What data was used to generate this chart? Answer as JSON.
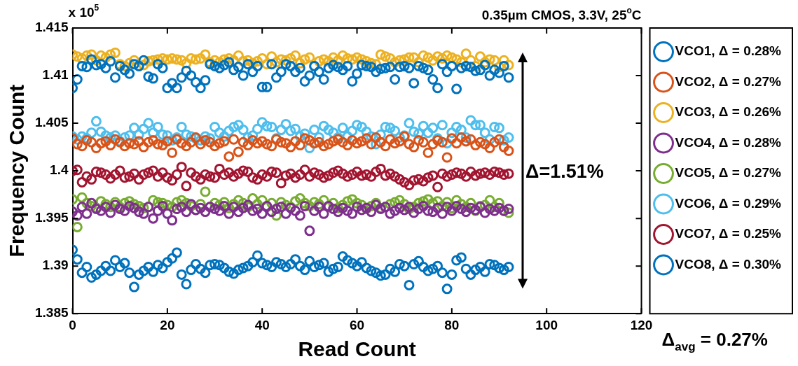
{
  "chart_data": {
    "type": "scatter",
    "title": "0.35µm CMOS, 3.3V, 25$^{o}$C",
    "xlabel": "Read Count",
    "ylabel": "Frequency Count",
    "annotations": [
      "x 10$^{5}$",
      "Δ=1.51%",
      "Δ$_{avg}$ = 0.27%"
    ],
    "x": [
      0,
      1,
      2,
      3,
      4,
      5,
      6,
      7,
      8,
      9,
      10,
      11,
      12,
      13,
      14,
      15,
      16,
      17,
      18,
      19,
      20,
      21,
      22,
      23,
      24,
      25,
      26,
      27,
      28,
      29,
      30,
      31,
      32,
      33,
      34,
      35,
      36,
      37,
      38,
      39,
      40,
      41,
      42,
      43,
      44,
      45,
      46,
      47,
      48,
      49,
      50,
      51,
      52,
      53,
      54,
      55,
      56,
      57,
      58,
      59,
      60,
      61,
      62,
      63,
      64,
      65,
      66,
      67,
      68,
      69,
      70,
      71,
      72,
      73,
      74,
      75,
      76,
      77,
      78,
      79,
      80,
      81,
      82,
      83,
      84,
      85,
      86,
      87,
      88,
      89,
      90,
      91,
      92
    ],
    "series": [
      {
        "name": "VCO1, Δ = 0.28%",
        "color": "#0072bd",
        "values": [
          1.4087,
          1.4096,
          1.411,
          1.4109,
          1.4117,
          1.4111,
          1.4112,
          1.4108,
          1.4115,
          1.4098,
          1.411,
          1.4106,
          1.4102,
          1.4112,
          1.411,
          1.4116,
          1.4099,
          1.4097,
          1.4112,
          1.4108,
          1.4087,
          1.4092,
          1.4087,
          1.4098,
          1.4105,
          1.41,
          1.4093,
          1.4087,
          1.4095,
          1.4112,
          1.411,
          1.4108,
          1.4111,
          1.4114,
          1.4106,
          1.4109,
          1.41,
          1.4112,
          1.4104,
          1.411,
          1.4088,
          1.4088,
          1.4112,
          1.4098,
          1.4104,
          1.4112,
          1.411,
          1.4104,
          1.4108,
          1.4094,
          1.41,
          1.411,
          1.4104,
          1.4096,
          1.4108,
          1.4111,
          1.4109,
          1.4106,
          1.411,
          1.4094,
          1.4102,
          1.4111,
          1.411,
          1.4109,
          1.4104,
          1.4107,
          1.4108,
          1.4109,
          1.4096,
          1.4109,
          1.411,
          1.4108,
          1.4092,
          1.411,
          1.4108,
          1.4106,
          1.4096,
          1.4087,
          1.4112,
          1.4104,
          1.411,
          1.4086,
          1.4108,
          1.411,
          1.4109,
          1.4105,
          1.4106,
          1.4111,
          1.41,
          1.4106,
          1.4103,
          1.411,
          1.4098
        ]
      },
      {
        "name": "VCO2, Δ = 0.27%",
        "color": "#d95319",
        "values": [
          1.4034,
          1.4028,
          1.4026,
          1.4032,
          1.403,
          1.4024,
          1.4029,
          1.4031,
          1.4027,
          1.4033,
          1.403,
          1.4026,
          1.4029,
          1.4028,
          1.4031,
          1.4025,
          1.403,
          1.4032,
          1.4028,
          1.4027,
          1.4031,
          1.4019,
          1.4033,
          1.4029,
          1.4026,
          1.403,
          1.4035,
          1.4028,
          1.4032,
          1.403,
          1.4026,
          1.4029,
          1.4031,
          1.4015,
          1.4033,
          1.402,
          1.403,
          1.4027,
          1.4032,
          1.4029,
          1.4031,
          1.4028,
          1.4026,
          1.4033,
          1.403,
          1.4029,
          1.4025,
          1.4031,
          1.4027,
          1.4034,
          1.4032,
          1.4029,
          1.403,
          1.4026,
          1.4028,
          1.4031,
          1.4033,
          1.403,
          1.4027,
          1.4032,
          1.4029,
          1.4031,
          1.4034,
          1.4028,
          1.4035,
          1.403,
          1.4026,
          1.4033,
          1.4029,
          1.4031,
          1.4036,
          1.4028,
          1.4025,
          1.4032,
          1.403,
          1.4019,
          1.4028,
          1.4032,
          1.403,
          1.4014,
          1.4034,
          1.4029,
          1.4035,
          1.4031,
          1.4033,
          1.4027,
          1.403,
          1.4028,
          1.4024,
          1.403,
          1.4033,
          1.4025,
          1.4021
        ]
      },
      {
        "name": "VCO3, Δ = 0.26%",
        "color": "#edb120",
        "values": [
          1.4122,
          1.412,
          1.4118,
          1.4121,
          1.4122,
          1.4116,
          1.4121,
          1.4119,
          1.4122,
          1.4124,
          1.4112,
          1.411,
          1.4113,
          1.4116,
          1.411,
          1.4111,
          1.4115,
          1.4116,
          1.4117,
          1.4118,
          1.4117,
          1.4118,
          1.4117,
          1.4116,
          1.4113,
          1.4118,
          1.4117,
          1.4118,
          1.4122,
          1.4114,
          1.4116,
          1.4114,
          1.4117,
          1.4118,
          1.4116,
          1.4121,
          1.4115,
          1.4116,
          1.4113,
          1.4115,
          1.4118,
          1.4112,
          1.412,
          1.4114,
          1.4117,
          1.4116,
          1.4118,
          1.4121,
          1.4113,
          1.4117,
          1.4119,
          1.411,
          1.4115,
          1.4117,
          1.4115,
          1.4119,
          1.4116,
          1.4121,
          1.4118,
          1.4117,
          1.4119,
          1.4117,
          1.4115,
          1.4113,
          1.4112,
          1.4122,
          1.412,
          1.4118,
          1.4114,
          1.4116,
          1.4117,
          1.4119,
          1.4119,
          1.4114,
          1.4121,
          1.4119,
          1.4116,
          1.412,
          1.4118,
          1.4121,
          1.4119,
          1.4117,
          1.4114,
          1.4123,
          1.4116,
          1.411,
          1.412,
          1.4114,
          1.4117,
          1.4116,
          1.4109,
          1.4116,
          1.4111
        ]
      },
      {
        "name": "VCO4, Δ = 0.28%",
        "color": "#7e2f8e",
        "values": [
          1.3957,
          1.3953,
          1.3962,
          1.3955,
          1.3966,
          1.396,
          1.3958,
          1.3962,
          1.3956,
          1.3964,
          1.396,
          1.3958,
          1.3963,
          1.3961,
          1.3957,
          1.3955,
          1.3962,
          1.395,
          1.3958,
          1.3963,
          1.3955,
          1.3948,
          1.396,
          1.3962,
          1.3957,
          1.3965,
          1.3959,
          1.3961,
          1.3957,
          1.3962,
          1.396,
          1.3958,
          1.3963,
          1.3955,
          1.3962,
          1.3957,
          1.3961,
          1.3964,
          1.3958,
          1.396,
          1.3955,
          1.3963,
          1.3957,
          1.396,
          1.3962,
          1.3955,
          1.3961,
          1.3958,
          1.3953,
          1.3963,
          1.3937,
          1.3958,
          1.3962,
          1.3955,
          1.3963,
          1.396,
          1.3957,
          1.3961,
          1.3958,
          1.3955,
          1.3962,
          1.3959,
          1.3961,
          1.3957,
          1.3964,
          1.396,
          1.3962,
          1.3955,
          1.3958,
          1.3961,
          1.3959,
          1.3962,
          1.3956,
          1.396,
          1.3963,
          1.3958,
          1.3957,
          1.3961,
          1.3955,
          1.3962,
          1.3958,
          1.3963,
          1.396,
          1.3957,
          1.3961,
          1.3959,
          1.3962,
          1.3956,
          1.396,
          1.3958,
          1.3961,
          1.3958,
          1.396
        ]
      },
      {
        "name": "VCO5, Δ = 0.27%",
        "color": "#77ac30",
        "values": [
          1.397,
          1.3941,
          1.3972,
          1.3966,
          1.3963,
          1.3961,
          1.3968,
          1.3965,
          1.3962,
          1.3967,
          1.3962,
          1.3966,
          1.3968,
          1.3965,
          1.3963,
          1.3961,
          1.3962,
          1.3969,
          1.3967,
          1.3966,
          1.3964,
          1.3962,
          1.3967,
          1.3969,
          1.3966,
          1.3963,
          1.3959,
          1.3965,
          1.3978,
          1.3962,
          1.3966,
          1.3964,
          1.3967,
          1.3961,
          1.3965,
          1.3969,
          1.3966,
          1.3962,
          1.3971,
          1.3965,
          1.3969,
          1.3962,
          1.3966,
          1.3953,
          1.3967,
          1.3964,
          1.3962,
          1.3968,
          1.3971,
          1.3966,
          1.3963,
          1.3967,
          1.3965,
          1.3969,
          1.3962,
          1.3966,
          1.3961,
          1.3964,
          1.3968,
          1.397,
          1.3966,
          1.3964,
          1.396,
          1.3963,
          1.3966,
          1.3961,
          1.3962,
          1.3965,
          1.3967,
          1.3969,
          1.3965,
          1.396,
          1.3962,
          1.3966,
          1.3968,
          1.397,
          1.3966,
          1.3968,
          1.3963,
          1.3967,
          1.3961,
          1.3969,
          1.3965,
          1.3962,
          1.3966,
          1.3958,
          1.3963,
          1.3964,
          1.3969,
          1.3962,
          1.3966,
          1.3958,
          1.3956
        ]
      },
      {
        "name": "VCO6, Δ = 0.29%",
        "color": "#4dbeee",
        "values": [
          1.4036,
          1.4033,
          1.4036,
          1.4034,
          1.404,
          1.4052,
          1.4041,
          1.4037,
          1.4035,
          1.4037,
          1.4031,
          1.4035,
          1.4037,
          1.4045,
          1.4038,
          1.4044,
          1.405,
          1.404,
          1.4046,
          1.4038,
          1.4037,
          1.4032,
          1.4035,
          1.4046,
          1.4038,
          1.4036,
          1.4034,
          1.4032,
          1.4036,
          1.4034,
          1.4046,
          1.404,
          1.4036,
          1.4042,
          1.4046,
          1.4048,
          1.4043,
          1.4035,
          1.4037,
          1.4044,
          1.4051,
          1.4047,
          1.4046,
          1.4034,
          1.4043,
          1.4049,
          1.4042,
          1.4044,
          1.4036,
          1.4039,
          1.4024,
          1.4043,
          1.4035,
          1.4047,
          1.4043,
          1.404,
          1.4035,
          1.4045,
          1.4036,
          1.4042,
          1.4048,
          1.4046,
          1.4041,
          1.4036,
          1.4028,
          1.4038,
          1.4046,
          1.4045,
          1.4042,
          1.4035,
          1.4037,
          1.405,
          1.4041,
          1.4039,
          1.4047,
          1.404,
          1.4045,
          1.4034,
          1.4048,
          1.4029,
          1.404,
          1.4046,
          1.4043,
          1.4035,
          1.4053,
          1.4048,
          1.4048,
          1.404,
          1.4033,
          1.4046,
          1.4045,
          1.4032,
          1.4035
        ]
      },
      {
        "name": "VCO7, Δ = 0.25%",
        "color": "#a2142f",
        "values": [
          1.4,
          1.4001,
          1.3988,
          1.3994,
          1.3991,
          1.3999,
          1.3998,
          1.3996,
          1.3992,
          1.3996,
          1.4,
          1.3993,
          1.3994,
          1.3997,
          1.3991,
          1.3996,
          1.3998,
          1.4,
          1.3994,
          1.3998,
          1.3993,
          1.399,
          1.3996,
          1.4004,
          1.3984,
          1.3998,
          1.3994,
          1.3991,
          1.3996,
          1.3994,
          1.3993,
          1.4002,
          1.3996,
          1.3998,
          1.3994,
          1.3997,
          1.4,
          1.3999,
          1.3993,
          1.3991,
          1.3996,
          1.3994,
          1.3999,
          1.3998,
          1.3987,
          1.3995,
          1.3997,
          1.3993,
          1.3996,
          1.4001,
          1.3994,
          1.3998,
          1.3996,
          1.3993,
          1.3995,
          1.3998,
          1.4,
          1.3997,
          1.3994,
          1.3996,
          1.3999,
          1.3995,
          1.3996,
          1.3994,
          1.3999,
          1.4002,
          1.3995,
          1.3997,
          1.3994,
          1.3991,
          1.3988,
          1.3985,
          1.399,
          1.3991,
          1.3989,
          1.3993,
          1.3995,
          1.3983,
          1.3997,
          1.3994,
          1.3996,
          1.3998,
          1.3997,
          1.3994,
          1.3999,
          1.3995,
          1.3997,
          1.3998,
          1.3996,
          1.3999,
          1.3998,
          1.3996,
          1.3997
        ]
      },
      {
        "name": "VCO8, Δ = 0.30%",
        "color": "#0072bd",
        "values": [
          1.3917,
          1.3907,
          1.3893,
          1.3899,
          1.3888,
          1.3891,
          1.3895,
          1.39,
          1.3895,
          1.3906,
          1.3899,
          1.3903,
          1.3893,
          1.3878,
          1.3891,
          1.3895,
          1.3899,
          1.3894,
          1.3901,
          1.3898,
          1.3904,
          1.3908,
          1.3914,
          1.3891,
          1.3881,
          1.3896,
          1.3902,
          1.3897,
          1.3893,
          1.3901,
          1.3902,
          1.3901,
          1.3898,
          1.3894,
          1.3892,
          1.3896,
          1.3898,
          1.39,
          1.3904,
          1.3911,
          1.3903,
          1.3901,
          1.3899,
          1.3904,
          1.3902,
          1.3899,
          1.3902,
          1.3907,
          1.39,
          1.3896,
          1.3905,
          1.3899,
          1.3901,
          1.3903,
          1.3894,
          1.3897,
          1.3899,
          1.391,
          1.3906,
          1.3903,
          1.39,
          1.3904,
          1.3898,
          1.3895,
          1.3893,
          1.389,
          1.3891,
          1.3897,
          1.3894,
          1.3902,
          1.39,
          1.388,
          1.3902,
          1.3905,
          1.3899,
          1.3895,
          1.3897,
          1.39,
          1.3893,
          1.3876,
          1.3891,
          1.3906,
          1.3909,
          1.3897,
          1.3891,
          1.3896,
          1.3899,
          1.3894,
          1.3902,
          1.3901,
          1.3898,
          1.3896,
          1.3899
        ]
      }
    ],
    "xlim": [
      0,
      120
    ],
    "xticks": [
      0,
      20,
      40,
      60,
      80,
      100,
      120
    ],
    "ylim": [
      1.385,
      1.415
    ],
    "yticks": [
      1.385,
      1.39,
      1.395,
      1.4,
      1.405,
      1.41,
      1.415
    ],
    "grid": false,
    "legend": "right",
    "marker": "circle"
  }
}
